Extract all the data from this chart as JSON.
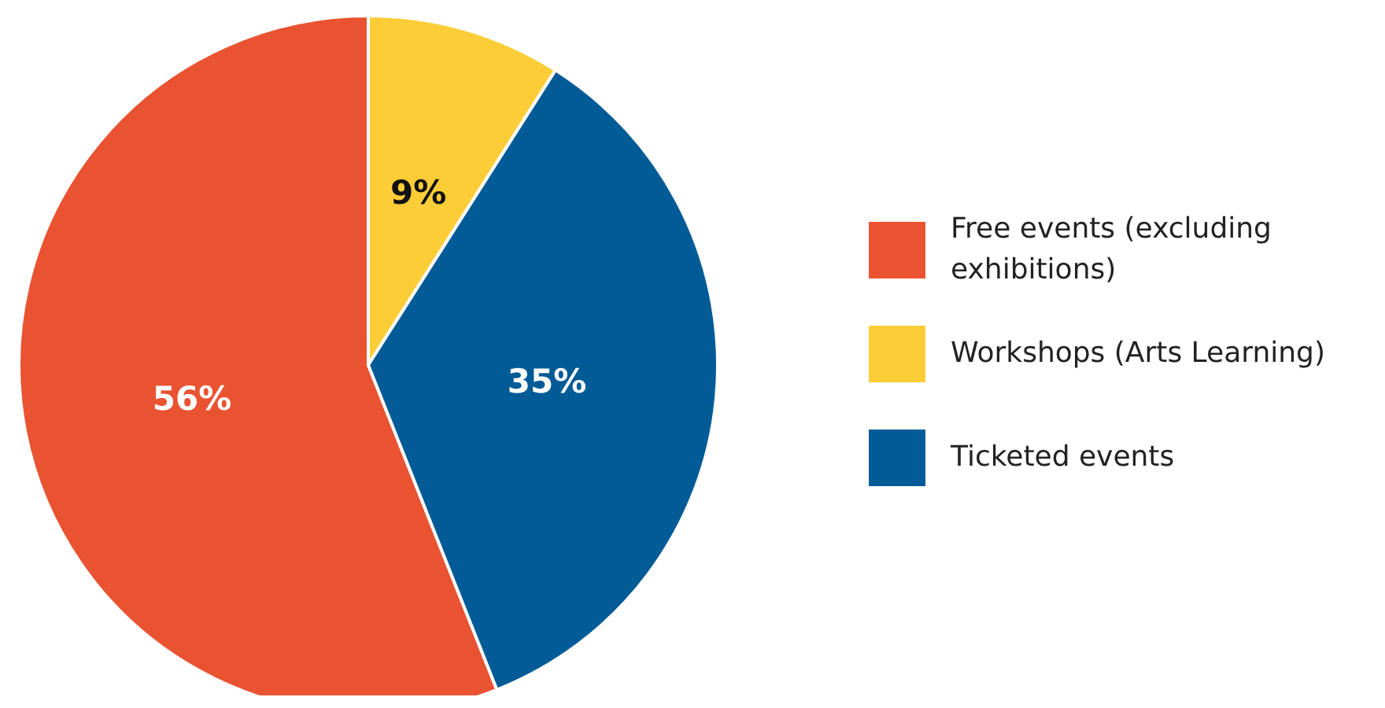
{
  "chart_data": {
    "type": "pie",
    "categories": [
      "Free events (excluding exhibitions)",
      "Workshops (Arts Learning)",
      "Ticketed events"
    ],
    "values": [
      56,
      9,
      35
    ],
    "value_labels": [
      "56%",
      "9%",
      "35%"
    ],
    "colors": [
      "#e95331",
      "#fdcd38",
      "#005b96"
    ],
    "legend": "right"
  }
}
